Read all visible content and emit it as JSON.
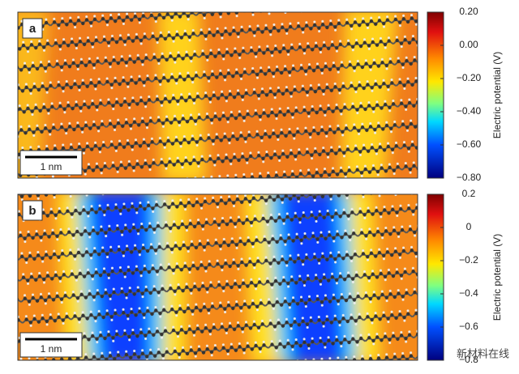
{
  "panels": [
    {
      "label": "a",
      "scale_bar": "1 nm",
      "colorbar": {
        "label": "Electric potential (V)",
        "lim": [
          -0.8,
          0.2
        ],
        "ticks": [
          {
            "value": 0.2,
            "label": "0.20"
          },
          {
            "value": 0,
            "label": "0.00"
          },
          {
            "value": -0.2,
            "label": "−0.20"
          },
          {
            "value": -0.4,
            "label": "−0.40"
          },
          {
            "value": -0.6,
            "label": "−0.60"
          },
          {
            "value": -0.8,
            "label": "−0.80"
          }
        ]
      }
    },
    {
      "label": "b",
      "scale_bar": "1 nm",
      "colorbar": {
        "label": "Electric potential (V)",
        "lim": [
          -0.8,
          0.2
        ],
        "ticks": [
          {
            "value": 0.2,
            "label": "0.2"
          },
          0,
          {
            "value": -0.2,
            "label": "−0.2"
          },
          {
            "value": -0.4,
            "label": "−0.4"
          },
          {
            "value": -0.6,
            "label": "−0.6"
          },
          {
            "value": -0.8,
            "label": "−0.8"
          }
        ]
      }
    }
  ],
  "watermark": "新材料在线"
}
